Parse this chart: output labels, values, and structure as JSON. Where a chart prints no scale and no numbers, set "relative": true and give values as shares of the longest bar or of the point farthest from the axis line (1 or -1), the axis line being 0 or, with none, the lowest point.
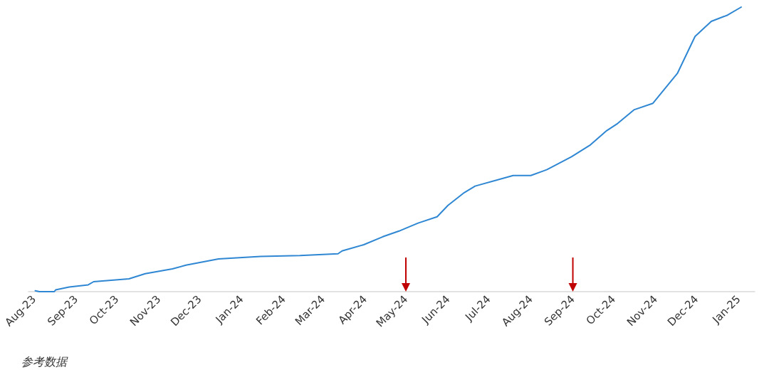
{
  "chart_data": {
    "type": "line",
    "relative": true,
    "marker": "none",
    "line_style": "solid",
    "grid": false,
    "x": [
      "2023-08-02",
      "2023-08-05",
      "2023-08-16",
      "2023-08-17",
      "2023-08-27",
      "2023-09-10",
      "2023-09-14",
      "2023-10-10",
      "2023-10-22",
      "2023-11-11",
      "2023-11-21",
      "2023-12-15",
      "2024-01-15",
      "2024-02-13",
      "2024-03-12",
      "2024-03-15",
      "2024-03-31",
      "2024-04-14",
      "2024-04-26",
      "2024-04-30",
      "2024-05-10",
      "2024-05-24",
      "2024-06-01",
      "2024-06-13",
      "2024-06-21",
      "2024-07-19",
      "2024-08-01",
      "2024-08-13",
      "2024-08-31",
      "2024-09-14",
      "2024-09-26",
      "2024-10-04",
      "2024-10-16",
      "2024-10-30",
      "2024-11-17",
      "2024-11-30",
      "2024-12-12",
      "2024-12-24",
      "2025-01-03"
    ],
    "series": [
      {
        "color": "#2f87d3",
        "values": [
          0.003,
          0,
          0,
          0.006,
          0.016,
          0.024,
          0.035,
          0.045,
          0.063,
          0.08,
          0.093,
          0.115,
          0.124,
          0.127,
          0.133,
          0.143,
          0.165,
          0.193,
          0.213,
          0.221,
          0.241,
          0.263,
          0.303,
          0.348,
          0.371,
          0.408,
          0.408,
          0.429,
          0.474,
          0.516,
          0.566,
          0.591,
          0.639,
          0.662,
          0.767,
          0.897,
          0.95,
          0.972,
          1
        ]
      }
    ],
    "xlim": [
      "2023-07-28",
      "2025-01-13"
    ],
    "xticks": [
      {
        "value": "2023-08-01",
        "label": "Aug-23"
      },
      {
        "value": "2023-09-01",
        "label": "Sep-23"
      },
      {
        "value": "2023-10-01",
        "label": "Oct-23"
      },
      {
        "value": "2023-11-01",
        "label": "Nov-23"
      },
      {
        "value": "2023-12-01",
        "label": "Dec-23"
      },
      {
        "value": "2024-01-01",
        "label": "Jan-24"
      },
      {
        "value": "2024-02-01",
        "label": "Feb-24"
      },
      {
        "value": "2024-03-01",
        "label": "Mar-24"
      },
      {
        "value": "2024-04-01",
        "label": "Apr-24"
      },
      {
        "value": "2024-05-01",
        "label": "May-24"
      },
      {
        "value": "2024-06-01",
        "label": "Jun-24"
      },
      {
        "value": "2024-07-01",
        "label": "Jul-24"
      },
      {
        "value": "2024-08-01",
        "label": "Aug-24"
      },
      {
        "value": "2024-09-01",
        "label": "Sep-24"
      },
      {
        "value": "2024-10-01",
        "label": "Oct-24"
      },
      {
        "value": "2024-11-01",
        "label": "Nov-24"
      },
      {
        "value": "2024-12-01",
        "label": "Dec-24"
      },
      {
        "value": "2025-01-01",
        "label": "Jan-25"
      }
    ],
    "ref_lines": [
      {
        "axis": "x",
        "value": "2024-05-01",
        "color": "#c00000"
      },
      {
        "axis": "x",
        "value": "2024-09-01",
        "color": "#c00000"
      }
    ],
    "annotations": [
      "参考数据"
    ]
  }
}
